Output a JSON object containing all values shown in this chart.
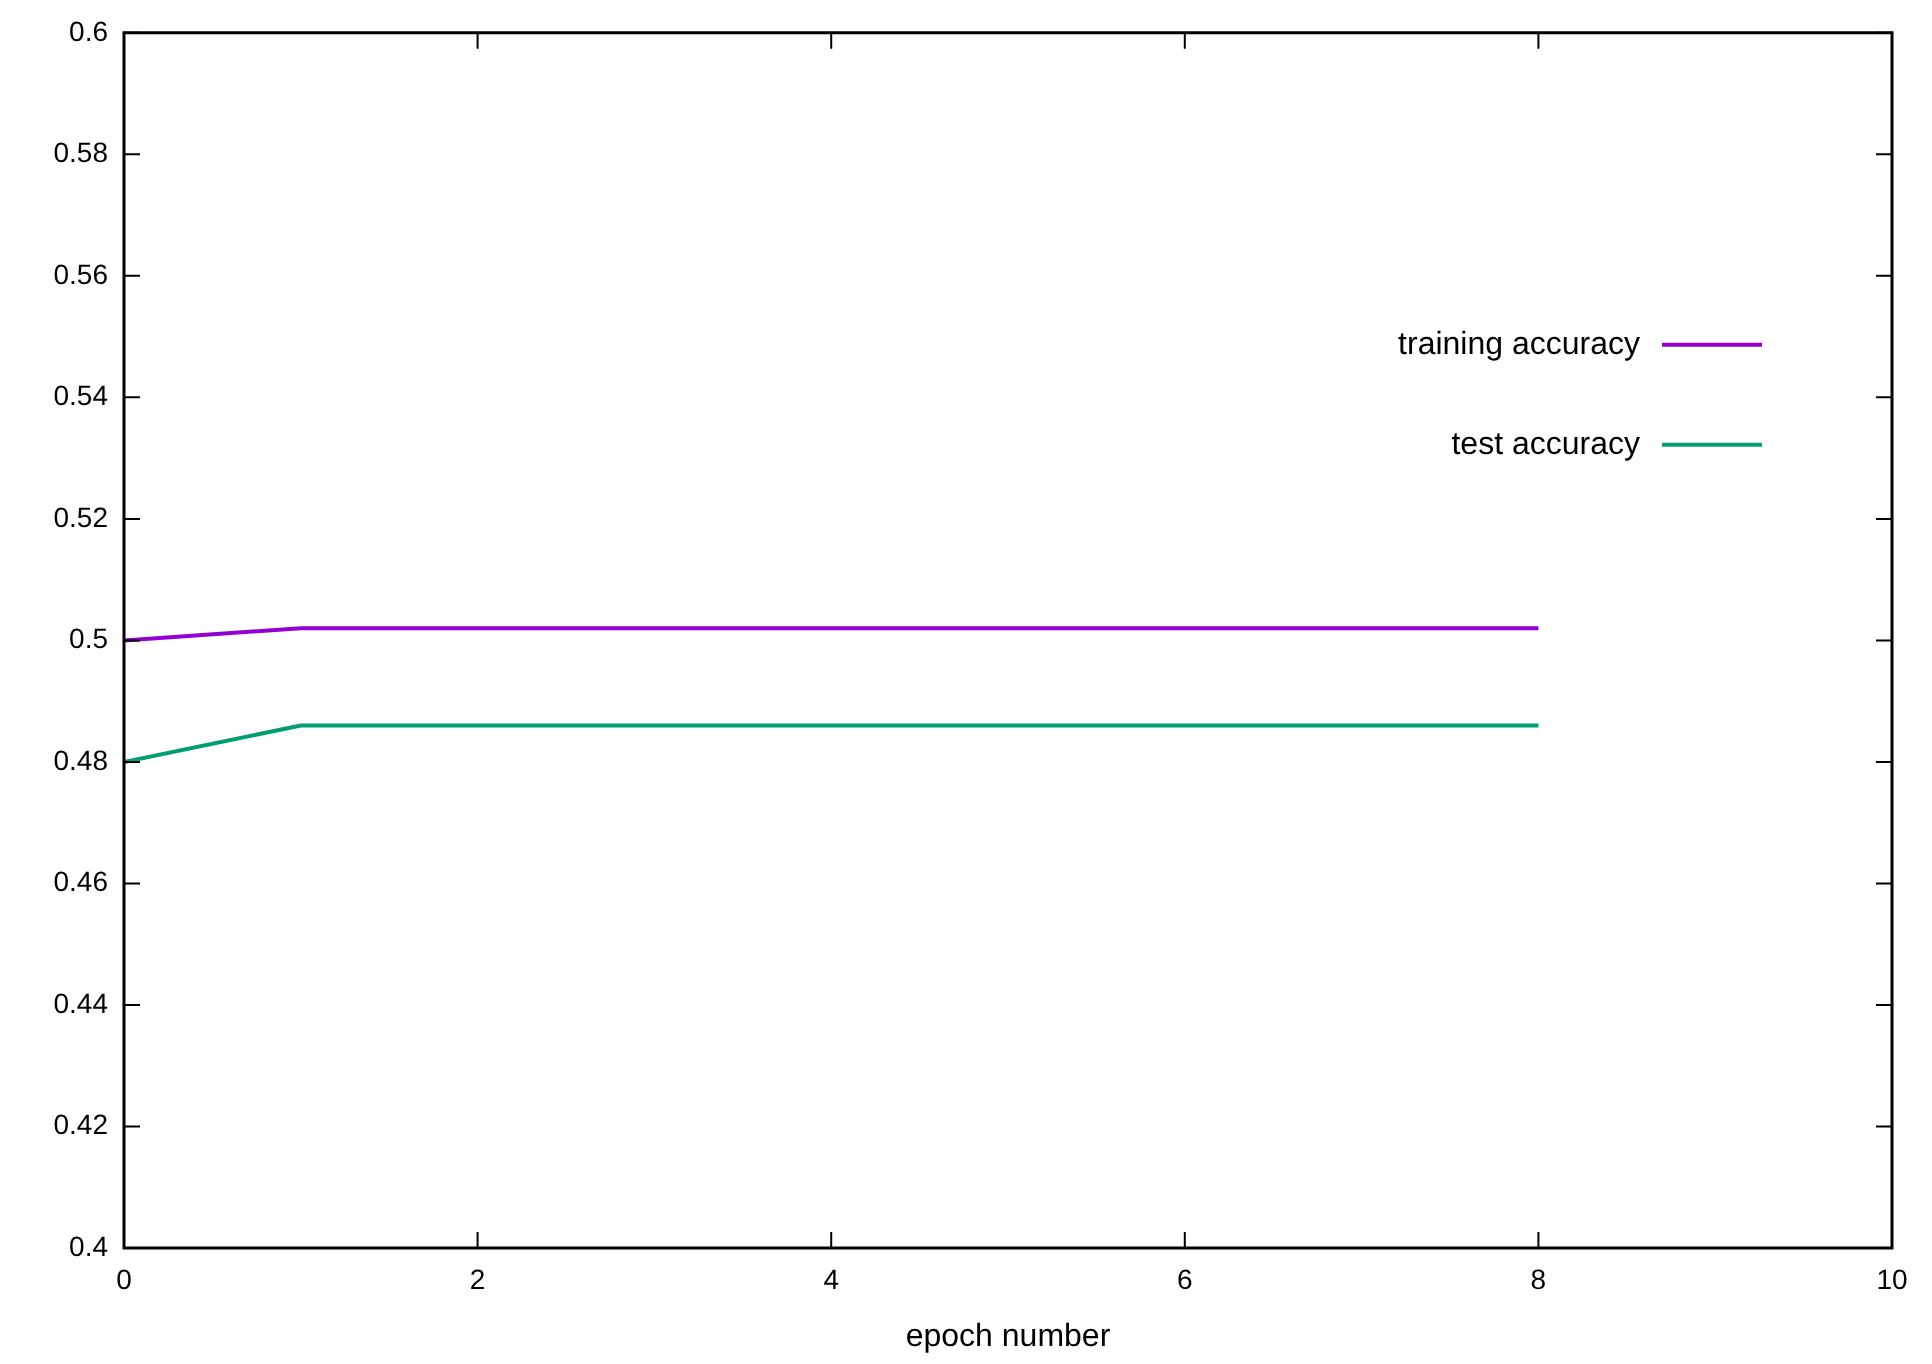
{
  "chart_data": {
    "type": "line",
    "xlabel": "epoch number",
    "x": [
      0,
      1,
      2,
      3,
      4,
      5,
      6,
      7,
      8
    ],
    "series": [
      {
        "name": "training accuracy",
        "color": "#9400d3",
        "values": [
          0.5,
          0.502,
          0.502,
          0.502,
          0.502,
          0.502,
          0.502,
          0.502,
          0.502
        ]
      },
      {
        "name": "test accuracy",
        "color": "#009e73",
        "values": [
          0.48,
          0.486,
          0.486,
          0.486,
          0.486,
          0.486,
          0.486,
          0.486,
          0.486
        ]
      }
    ],
    "xlim": [
      0,
      10
    ],
    "xticks": [
      0,
      2,
      4,
      6,
      8,
      10
    ],
    "ylim": [
      0.4,
      0.6
    ],
    "yticks": [
      0.4,
      0.42,
      0.44,
      0.46,
      0.48,
      0.5,
      0.52,
      0.54,
      0.56,
      0.58,
      0.6
    ],
    "grid": false,
    "legend": "top right",
    "marker": "none",
    "line_style": "solid"
  }
}
